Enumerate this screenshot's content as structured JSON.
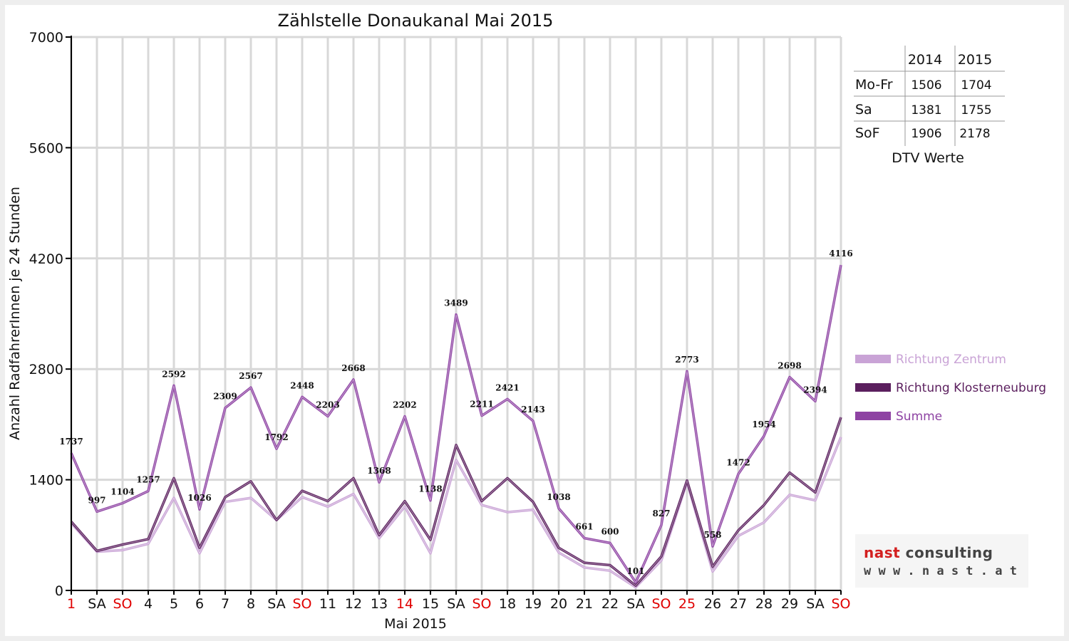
{
  "chart_data": {
    "type": "line",
    "title": "Zählstelle Donaukanal Mai 2015",
    "xlabel": "Mai 2015",
    "ylabel": "Anzahl RadfahrerInnen je 24 Stunden",
    "ylim": [
      0,
      7000
    ],
    "yticks": [
      "0",
      "1400",
      "2800",
      "4200",
      "5600",
      "7000"
    ],
    "grid": "vertical and horizontal",
    "legend_position": "right",
    "categories": [
      "1",
      "SA",
      "SO",
      "4",
      "5",
      "6",
      "7",
      "8",
      "SA",
      "SO",
      "11",
      "12",
      "13",
      "14",
      "15",
      "SA",
      "SO",
      "18",
      "19",
      "20",
      "21",
      "22",
      "SA",
      "SO",
      "25",
      "26",
      "27",
      "28",
      "29",
      "SA",
      "SO"
    ],
    "red_categories": [
      0,
      2,
      9,
      13,
      16,
      23,
      24,
      30
    ],
    "series": [
      {
        "name": "Richtung Zentrum",
        "color": "#c9a3d6",
        "values": [
          850,
          490,
          510,
          590,
          1170,
          470,
          1120,
          1170,
          890,
          1180,
          1060,
          1220,
          660,
          1060,
          470,
          1650,
          1080,
          990,
          1020,
          480,
          290,
          250,
          40,
          380,
          1370,
          240,
          690,
          860,
          1210,
          1140,
          1940
        ]
      },
      {
        "name": "Richtung Klosterneuburg",
        "color": "#5b1f5e",
        "values": [
          870,
          500,
          580,
          650,
          1420,
          540,
          1180,
          1380,
          890,
          1260,
          1130,
          1420,
          700,
          1130,
          640,
          1840,
          1130,
          1420,
          1120,
          540,
          350,
          320,
          60,
          430,
          1390,
          300,
          760,
          1080,
          1490,
          1240,
          2190
        ]
      },
      {
        "name": "Summe",
        "color": "#8e43a3",
        "values": [
          1737,
          997,
          1104,
          1257,
          2592,
          1026,
          2309,
          2567,
          1792,
          2448,
          2203,
          2668,
          1368,
          2202,
          1138,
          3489,
          2211,
          2421,
          2143,
          1038,
          661,
          600,
          101,
          827,
          2773,
          558,
          1472,
          1954,
          2698,
          2394,
          4116
        ],
        "labels": [
          "1737",
          "997",
          "1104",
          "1257",
          "2592",
          "1026",
          "2309",
          "2567",
          "1792",
          "2448",
          "2203",
          "2668",
          "1368",
          "2202",
          "1138",
          "3489",
          "2211",
          "2421",
          "2143",
          "1038",
          "661",
          "600",
          "101",
          "827",
          "2773",
          "558",
          "1472",
          "1954",
          "2698",
          "2394",
          "4116"
        ]
      }
    ]
  },
  "dtv_table": {
    "caption": "DTV Werte",
    "years": [
      "2014",
      "2015"
    ],
    "rows": [
      {
        "label": "Mo-Fr",
        "v2014": "1506",
        "v2015": "1704"
      },
      {
        "label": "Sa",
        "v2014": "1381",
        "v2015": "1755"
      },
      {
        "label": "SoF",
        "v2014": "1906",
        "v2015": "2178"
      }
    ]
  },
  "logo": {
    "name_part1": "nast",
    "name_part2": " consulting",
    "url": "w w w . n a s t . a t"
  }
}
